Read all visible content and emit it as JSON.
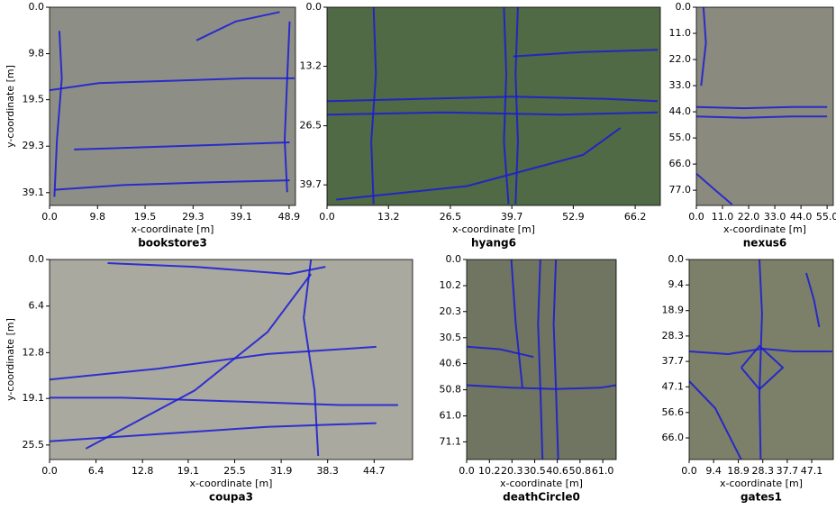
{
  "chart_data": [
    {
      "type": "line",
      "title": "bookstore3",
      "xlabel": "x-coordinate [m]",
      "ylabel": "y-coordinate [m]",
      "xlim": [
        0,
        50.2
      ],
      "ylim": [
        41.8,
        0
      ],
      "xticks": [
        {
          "value": 0,
          "label": "0.0"
        },
        9.8,
        19.5,
        29.3,
        39.1,
        48.9
      ],
      "yticks": [
        {
          "value": 0,
          "label": "0.0"
        },
        9.8,
        19.5,
        29.3,
        39.1
      ],
      "series": [
        {
          "color": "#1a1ad6",
          "x": [
            0,
            10,
            25,
            40,
            50
          ],
          "y": [
            17.5,
            16,
            15.5,
            15,
            15
          ]
        },
        {
          "color": "#1a1ad6",
          "x": [
            1,
            15,
            30,
            49
          ],
          "y": [
            38.5,
            37.5,
            37,
            36.5
          ]
        },
        {
          "color": "#1a1ad6",
          "x": [
            2,
            2.5,
            1.5,
            1
          ],
          "y": [
            5,
            15,
            28,
            40
          ]
        },
        {
          "color": "#1a1ad6",
          "x": [
            49,
            48.5,
            48,
            48.5
          ],
          "y": [
            3,
            15,
            28,
            39
          ]
        },
        {
          "color": "#1a1ad6",
          "x": [
            30,
            38,
            47
          ],
          "y": [
            7,
            3,
            1
          ]
        },
        {
          "color": "#1a1ad6",
          "x": [
            5,
            20,
            35,
            49
          ],
          "y": [
            30,
            29.5,
            29,
            28.5
          ]
        }
      ]
    },
    {
      "type": "line",
      "title": "hyang6",
      "xlabel": "x-coordinate [m]",
      "xlim": [
        0,
        71.6
      ],
      "ylim": [
        44.3,
        0
      ],
      "xticks": [
        {
          "value": 0,
          "label": "0.0"
        },
        13.2,
        26.5,
        39.7,
        52.9,
        66.2
      ],
      "yticks": [
        {
          "value": 0,
          "label": "0.0"
        },
        13.2,
        26.5,
        39.7
      ],
      "series": [
        {
          "color": "#1a1ad6",
          "x": [
            0,
            20,
            40,
            60,
            71
          ],
          "y": [
            21,
            20.5,
            20,
            20.5,
            21
          ]
        },
        {
          "color": "#1a1ad6",
          "x": [
            0,
            25,
            50,
            71
          ],
          "y": [
            24,
            23.5,
            24,
            23.5
          ]
        },
        {
          "color": "#1a1ad6",
          "x": [
            38,
            38.5,
            38,
            39
          ],
          "y": [
            0,
            15,
            30,
            44
          ]
        },
        {
          "color": "#1a1ad6",
          "x": [
            41,
            40.5,
            41,
            40.5
          ],
          "y": [
            0,
            15,
            30,
            44
          ]
        },
        {
          "color": "#1a1ad6",
          "x": [
            2,
            30,
            55,
            63
          ],
          "y": [
            43,
            40,
            33,
            27
          ]
        },
        {
          "color": "#1a1ad6",
          "x": [
            40,
            55,
            71
          ],
          "y": [
            11,
            10,
            9.5
          ]
        },
        {
          "color": "#1a1ad6",
          "x": [
            10,
            10.5,
            9.5,
            10
          ],
          "y": [
            0,
            15,
            30,
            44
          ]
        }
      ]
    },
    {
      "type": "line",
      "title": "nexus6",
      "xlabel": "x-coordinate [m]",
      "xlim": [
        0,
        57.6
      ],
      "ylim": [
        83.4,
        0
      ],
      "xticks": [
        {
          "value": 0,
          "label": "0.0"
        },
        {
          "value": 11,
          "label": "11.0"
        },
        {
          "value": 22,
          "label": "22.0"
        },
        {
          "value": 33,
          "label": "33.0"
        },
        {
          "value": 44,
          "label": "44.0"
        },
        {
          "value": 55,
          "label": "55.0"
        }
      ],
      "yticks": [
        {
          "value": 0,
          "label": "0.0"
        },
        {
          "value": 11,
          "label": "11.0"
        },
        {
          "value": 22,
          "label": "22.0"
        },
        {
          "value": 33,
          "label": "33.0"
        },
        {
          "value": 44,
          "label": "44.0"
        },
        {
          "value": 55,
          "label": "55.0"
        },
        {
          "value": 66,
          "label": "66.0"
        },
        {
          "value": 77,
          "label": "77.0"
        }
      ],
      "series": [
        {
          "color": "#1a1ad6",
          "x": [
            0,
            20,
            40,
            55
          ],
          "y": [
            42,
            42.5,
            42,
            42
          ]
        },
        {
          "color": "#1a1ad6",
          "x": [
            0,
            20,
            40,
            55
          ],
          "y": [
            46,
            46.5,
            46,
            46
          ]
        },
        {
          "color": "#1a1ad6",
          "x": [
            3,
            4,
            2
          ],
          "y": [
            0,
            15,
            33
          ]
        },
        {
          "color": "#1a1ad6",
          "x": [
            0,
            8,
            15
          ],
          "y": [
            70,
            77,
            83
          ]
        }
      ]
    },
    {
      "type": "line",
      "title": "coupa3",
      "xlabel": "x-coordinate [m]",
      "ylabel": "y-coordinate [m]",
      "xlim": [
        0,
        50
      ],
      "ylim": [
        27.5,
        0
      ],
      "xticks": [
        {
          "value": 0,
          "label": "0.0"
        },
        6.4,
        12.8,
        19.1,
        25.5,
        31.9,
        38.3,
        44.7
      ],
      "yticks": [
        {
          "value": 0,
          "label": "0.0"
        },
        6.4,
        12.8,
        19.1,
        25.5
      ],
      "series": [
        {
          "color": "#1a1ad6",
          "x": [
            0,
            10,
            25,
            40,
            48
          ],
          "y": [
            19,
            19,
            19.5,
            20,
            20
          ]
        },
        {
          "color": "#1a1ad6",
          "x": [
            0,
            15,
            30,
            45
          ],
          "y": [
            25,
            24,
            23,
            22.5
          ]
        },
        {
          "color": "#1a1ad6",
          "x": [
            5,
            20,
            30,
            36
          ],
          "y": [
            26,
            18,
            10,
            2
          ]
        },
        {
          "color": "#1a1ad6",
          "x": [
            8,
            20,
            33,
            38
          ],
          "y": [
            0.5,
            1,
            2,
            1
          ]
        },
        {
          "color": "#1a1ad6",
          "x": [
            36,
            35,
            36.5,
            37
          ],
          "y": [
            0,
            8,
            18,
            27
          ]
        },
        {
          "color": "#1a1ad6",
          "x": [
            0,
            15,
            30,
            45
          ],
          "y": [
            16.5,
            15,
            13,
            12
          ]
        }
      ]
    },
    {
      "type": "line",
      "title": "deathCircle0",
      "xlabel": "x-coordinate [m]",
      "xlim": [
        0,
        67
      ],
      "ylim": [
        78,
        0
      ],
      "xticks": [
        {
          "value": 0,
          "label": "0.0"
        },
        10.2,
        20.3,
        30.5,
        40.6,
        50.8,
        {
          "value": 61,
          "label": "61.0"
        }
      ],
      "yticks": [
        {
          "value": 0,
          "label": "0.0"
        },
        10.2,
        20.3,
        30.5,
        40.6,
        50.8,
        {
          "value": 61,
          "label": "61.0"
        },
        71.1
      ],
      "series": [
        {
          "color": "#1a1ad6",
          "x": [
            0,
            20,
            40,
            60,
            67
          ],
          "y": [
            49,
            50,
            50.5,
            50,
            49
          ]
        },
        {
          "color": "#1a1ad6",
          "x": [
            33,
            32,
            33,
            34
          ],
          "y": [
            0,
            25,
            50,
            78
          ]
        },
        {
          "color": "#1a1ad6",
          "x": [
            40,
            39,
            40,
            41
          ],
          "y": [
            0,
            25,
            50,
            78
          ]
        },
        {
          "color": "#1a1ad6",
          "x": [
            20,
            22,
            25
          ],
          "y": [
            0,
            25,
            50
          ]
        },
        {
          "color": "#1a1ad6",
          "x": [
            0,
            15,
            30
          ],
          "y": [
            34,
            35,
            38
          ]
        }
      ]
    },
    {
      "type": "line",
      "title": "gates1",
      "xlabel": "x-coordinate [m]",
      "xlim": [
        0,
        55.4
      ],
      "ylim": [
        74,
        0
      ],
      "xticks": [
        {
          "value": 0,
          "label": "0.0"
        },
        9.4,
        18.9,
        28.3,
        37.7,
        47.1
      ],
      "yticks": [
        {
          "value": 0,
          "label": "0.0"
        },
        9.4,
        18.9,
        28.3,
        37.7,
        47.1,
        56.6,
        {
          "value": 66,
          "label": "66.0"
        }
      ],
      "series": [
        {
          "color": "#1a1ad6",
          "x": [
            0,
            15,
            28,
            40,
            55
          ],
          "y": [
            34,
            35,
            33,
            34,
            34
          ]
        },
        {
          "color": "#1a1ad6",
          "x": [
            27,
            28,
            27,
            27.5
          ],
          "y": [
            0,
            20,
            50,
            74
          ]
        },
        {
          "color": "#1a1ad6",
          "x": [
            20,
            27,
            36,
            27,
            20
          ],
          "y": [
            40,
            32,
            40,
            48,
            40
          ]
        },
        {
          "color": "#1a1ad6",
          "x": [
            45,
            48,
            50
          ],
          "y": [
            5,
            15,
            25
          ]
        },
        {
          "color": "#1a1ad6",
          "x": [
            0,
            10,
            20
          ],
          "y": [
            45,
            55,
            74
          ]
        }
      ]
    }
  ]
}
